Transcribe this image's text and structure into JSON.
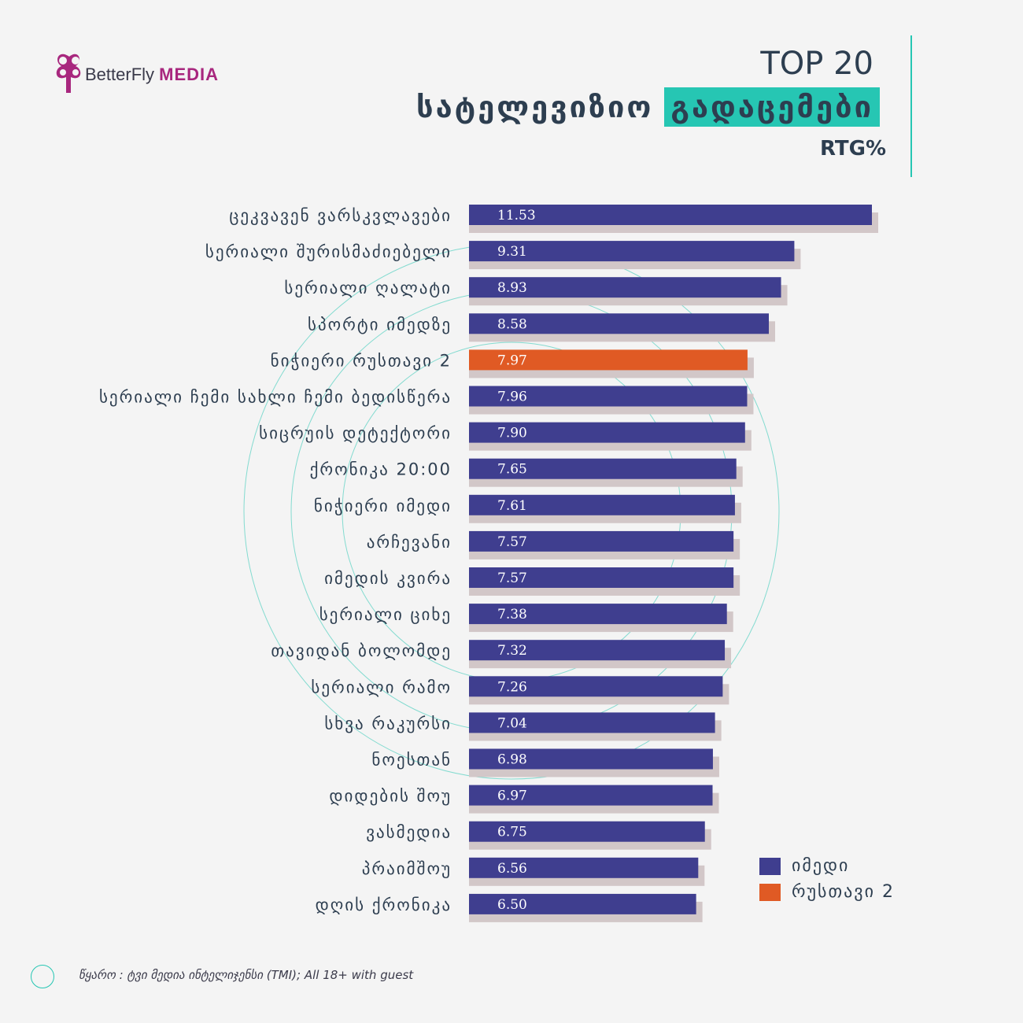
{
  "brand": {
    "name": "BetterFly",
    "media": "MEDIA"
  },
  "header": {
    "top": "TOP 20",
    "title_part1": "სატელევიზიო",
    "title_part2": "გადაცემები",
    "unit": "RTG%"
  },
  "colors": {
    "imedi": "#3f3e8f",
    "rustavi2": "#e05a24",
    "shadow": "#d2c7c8",
    "accent": "#26c6b3"
  },
  "legend": [
    {
      "label": "იმედი",
      "color": "#3f3e8f"
    },
    {
      "label": "რუსთავი 2",
      "color": "#e05a24"
    }
  ],
  "chart_data": {
    "type": "bar",
    "orientation": "horizontal",
    "unit": "RTG%",
    "categories": [
      "ცეკვავენ ვარსკვლავები",
      "სერიალი შურისმაძიებელი",
      "სერიალი ღალატი",
      "სპორტი იმედზე",
      "ნიჭიერი რუსთავი 2",
      "სერიალი ჩემი სახლი ჩემი ბედისწერა",
      "სიცრუის დეტექტორი",
      "ქრონიკა 20:00",
      "ნიჭიერი იმედი",
      "არჩევანი",
      "იმედის კვირა",
      "სერიალი ციხე",
      "თავიდან ბოლომდე",
      "სერიალი რამო",
      "სხვა რაკურსი",
      "ნოესთან",
      "დიდების შოუ",
      "ვასმედია",
      "პრაიმშოუ",
      "დღის ქრონიკა"
    ],
    "values": [
      11.53,
      9.31,
      8.93,
      8.58,
      7.97,
      7.96,
      7.9,
      7.65,
      7.61,
      7.57,
      7.57,
      7.38,
      7.32,
      7.26,
      7.04,
      6.98,
      6.97,
      6.75,
      6.56,
      6.5
    ],
    "value_labels": [
      "11.53",
      "9.31",
      "8.93",
      "8.58",
      "7.97",
      "7.96",
      "7.90",
      "7.65",
      "7.61",
      "7.57",
      "7.57",
      "7.38",
      "7.32",
      "7.26",
      "7.04",
      "6.98",
      "6.97",
      "6.75",
      "6.56",
      "6.50"
    ],
    "channel": [
      "imedi",
      "imedi",
      "imedi",
      "imedi",
      "rustavi2",
      "imedi",
      "imedi",
      "imedi",
      "imedi",
      "imedi",
      "imedi",
      "imedi",
      "imedi",
      "imedi",
      "imedi",
      "imedi",
      "imedi",
      "imedi",
      "imedi",
      "imedi"
    ],
    "legend_position": "bottom-right",
    "grid": false
  },
  "footer": {
    "source": "წყარო : ტვი მედია ინტელიჯენსი (TMI); All 18+ with guest"
  }
}
